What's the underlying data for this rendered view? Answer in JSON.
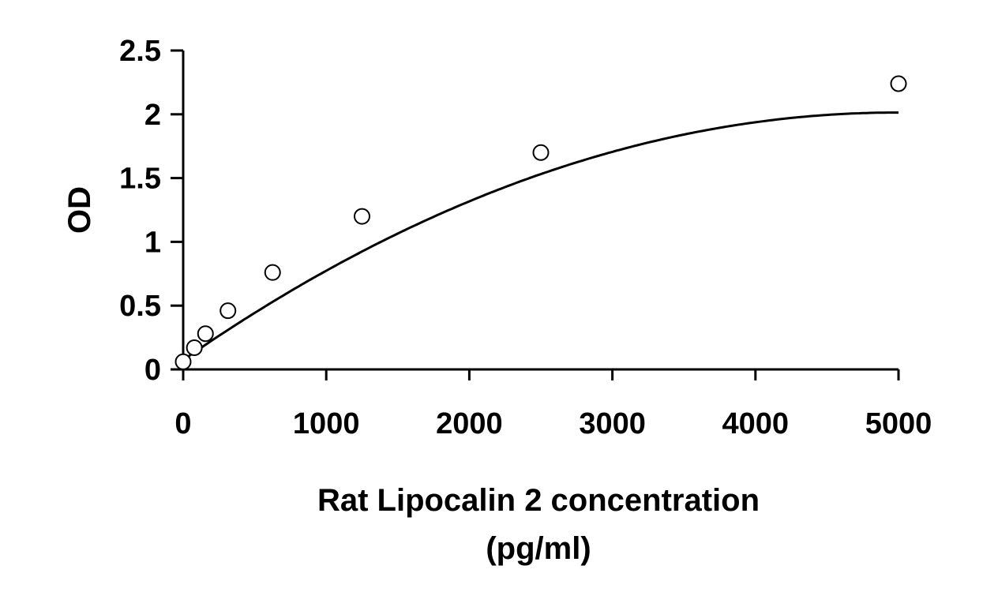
{
  "chart_data": {
    "type": "scatter",
    "title": "",
    "xlabel": "Rat Lipocalin 2 concentration",
    "xlabel_line2": "(pg/ml)",
    "ylabel": "OD",
    "xlim": [
      0,
      5000
    ],
    "ylim": [
      0,
      2.5
    ],
    "x_ticks": [
      0,
      1000,
      2000,
      3000,
      4000,
      5000
    ],
    "x_tick_labels": [
      "0",
      "1000",
      "2000",
      "3000",
      "4000",
      "5000"
    ],
    "y_ticks": [
      0,
      0.5,
      1,
      1.5,
      2,
      2.5
    ],
    "y_tick_labels": [
      "0",
      "0.5",
      "1",
      "1.5",
      "2",
      "2.5"
    ],
    "grid": false,
    "legend": "none",
    "points": [
      {
        "x": 0,
        "y": 0.06
      },
      {
        "x": 78,
        "y": 0.17
      },
      {
        "x": 156,
        "y": 0.28
      },
      {
        "x": 313,
        "y": 0.46
      },
      {
        "x": 625,
        "y": 0.76
      },
      {
        "x": 1250,
        "y": 1.2
      },
      {
        "x": 2500,
        "y": 1.7
      },
      {
        "x": 5000,
        "y": 2.24
      }
    ],
    "fit_curve": {
      "type": "polynomial",
      "coefficients": [
        0.0737,
        0.000778,
        -7.8e-08
      ]
    }
  }
}
